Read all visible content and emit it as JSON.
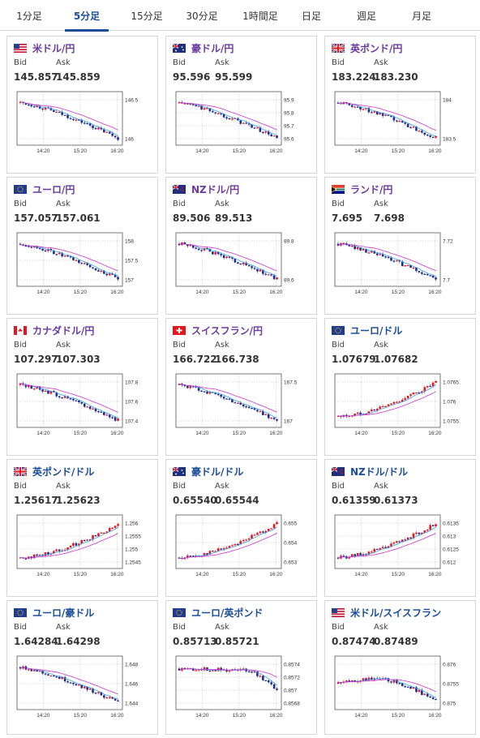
{
  "tabs": [
    {
      "label": "1分足",
      "active": false
    },
    {
      "label": "5分足",
      "active": true
    },
    {
      "label": "15分足",
      "active": false
    },
    {
      "label": "30分足",
      "active": false
    },
    {
      "label": "1時間足",
      "active": false
    },
    {
      "label": "日足",
      "active": false
    },
    {
      "label": "週足",
      "active": false
    },
    {
      "label": "月足",
      "active": false
    }
  ],
  "labels": {
    "bid": "Bid",
    "ask": "Ask"
  },
  "colors": {
    "accent": "#1a4e9a",
    "pair_purple": "#6a3aa0",
    "candle_up": "#e8141c",
    "candle_down": "#1d2b8f",
    "ma_short": "#3aa0e0",
    "ma_long": "#cc33cc"
  },
  "cards": [
    {
      "pair": "米ドル/円",
      "flag": "us",
      "bid": "145.857",
      "ask": "145.859",
      "yticks": [
        "146.5",
        "146"
      ],
      "xticks": [
        "14:20",
        "15:20",
        "16:20"
      ],
      "trend": "down"
    },
    {
      "pair": "豪ドル/円",
      "flag": "au",
      "bid": "95.596",
      "ask": "95.599",
      "yticks": [
        "95.9",
        "95.8",
        "95.7",
        "95.6"
      ],
      "xticks": [
        "14:20",
        "15:20",
        "16:20"
      ],
      "trend": "down"
    },
    {
      "pair": "英ポンド/円",
      "flag": "gb",
      "bid": "183.224",
      "ask": "183.230",
      "yticks": [
        "184",
        "183.5"
      ],
      "xticks": [
        "14:20",
        "15:20",
        "16:20"
      ],
      "trend": "down"
    },
    {
      "pair": "ユーロ/円",
      "flag": "eu",
      "bid": "157.057",
      "ask": "157.061",
      "yticks": [
        "158",
        "157.5",
        "157"
      ],
      "xticks": [
        "14:20",
        "15:20",
        "16:20"
      ],
      "trend": "down"
    },
    {
      "pair": "NZドル/円",
      "flag": "nz",
      "bid": "89.506",
      "ask": "89.513",
      "yticks": [
        "89.8",
        "89.6"
      ],
      "xticks": [
        "14:20",
        "15:20",
        "16:20"
      ],
      "trend": "down"
    },
    {
      "pair": "ランド/円",
      "flag": "za",
      "bid": "7.695",
      "ask": "7.698",
      "yticks": [
        "7.72",
        "7.7"
      ],
      "xticks": [
        "14:20",
        "15:20",
        "16:20"
      ],
      "trend": "down"
    },
    {
      "pair": "カナダドル/円",
      "flag": "ca",
      "bid": "107.297",
      "ask": "107.303",
      "yticks": [
        "107.8",
        "107.6",
        "107.4"
      ],
      "xticks": [
        "14:20",
        "15:20",
        "16:20"
      ],
      "trend": "down"
    },
    {
      "pair": "スイスフラン/円",
      "flag": "ch",
      "bid": "166.722",
      "ask": "166.738",
      "yticks": [
        "167.5",
        "167"
      ],
      "xticks": [
        "14:20",
        "15:20",
        "16:20"
      ],
      "trend": "down"
    },
    {
      "pair": "ユーロ/ドル",
      "flag": "eu",
      "bid": "1.07679",
      "ask": "1.07682",
      "yticks": [
        "1.0765",
        "1.076",
        "1.0755"
      ],
      "xticks": [
        "14:20",
        "15:20",
        "16:20"
      ],
      "trend": "up"
    },
    {
      "pair": "英ポンド/ドル",
      "flag": "gb",
      "bid": "1.25617",
      "ask": "1.25623",
      "yticks": [
        "1.256",
        "1.2555",
        "1.255",
        "1.2545"
      ],
      "xticks": [
        "14:20",
        "15:20",
        "16:20"
      ],
      "trend": "up"
    },
    {
      "pair": "豪ドル/ドル",
      "flag": "au",
      "bid": "0.65540",
      "ask": "0.65544",
      "yticks": [
        "0.655",
        "0.654",
        "0.653"
      ],
      "xticks": [
        "14:20",
        "15:20",
        "16:20"
      ],
      "trend": "up"
    },
    {
      "pair": "NZドル/ドル",
      "flag": "nz",
      "bid": "0.61359",
      "ask": "0.61373",
      "yticks": [
        "0.6135",
        "0.613",
        "0.6125",
        "0.612"
      ],
      "xticks": [
        "14:20",
        "15:20",
        "16:20"
      ],
      "trend": "up"
    },
    {
      "pair": "ユーロ/豪ドル",
      "flag": "eu",
      "bid": "1.64284",
      "ask": "1.64298",
      "yticks": [
        "1.648",
        "1.646",
        "1.644"
      ],
      "xticks": [
        "14:20",
        "15:20",
        "16:20"
      ],
      "trend": "down"
    },
    {
      "pair": "ユーロ/英ポンド",
      "flag": "eu",
      "bid": "0.85713",
      "ask": "0.85721",
      "yticks": [
        "0.8574",
        "0.8572",
        "0.857",
        "0.8568"
      ],
      "xticks": [
        "14:20",
        "15:20",
        "16:20"
      ],
      "trend": "flatdown"
    },
    {
      "pair": "米ドル/スイスフラン",
      "flag": "us",
      "bid": "0.87474",
      "ask": "0.87489",
      "yticks": [
        "0.876",
        "0.8755",
        "0.875"
      ],
      "xticks": [
        "14:20",
        "15:20",
        "16:20"
      ],
      "trend": "humpdown"
    }
  ]
}
